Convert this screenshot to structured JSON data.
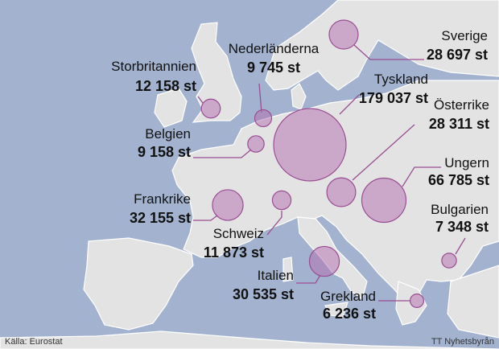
{
  "regions": [
    {
      "name": "Storbritannien",
      "value": 12158,
      "label": "12 158 st"
    },
    {
      "name": "Nederländerna",
      "value": 9745,
      "label": "9 745 st"
    },
    {
      "name": "Belgien",
      "value": 9158,
      "label": "9 158 st"
    },
    {
      "name": "Frankrike",
      "value": 32155,
      "label": "32 155 st"
    },
    {
      "name": "Schweiz",
      "value": 11873,
      "label": "11 873 st"
    },
    {
      "name": "Tyskland",
      "value": 179037,
      "label": "179 037 st"
    },
    {
      "name": "Österrike",
      "value": 28311,
      "label": "28 311 st"
    },
    {
      "name": "Ungern",
      "value": 66785,
      "label": "66 785 st"
    },
    {
      "name": "Sverige",
      "value": 28697,
      "label": "28 697 st"
    },
    {
      "name": "Bulgarien",
      "value": 7348,
      "label": "7 348 st"
    },
    {
      "name": "Italien",
      "value": 30535,
      "label": "30 535 st"
    },
    {
      "name": "Grekland",
      "value": 6236,
      "label": "6 236 st"
    }
  ],
  "source": "Källa: Eurostat",
  "credit": "TT Nyhetsbyrån"
}
